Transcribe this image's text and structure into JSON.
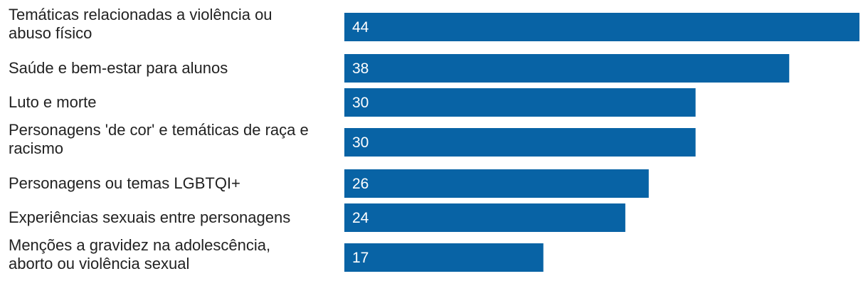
{
  "chart_data": {
    "type": "bar",
    "orientation": "horizontal",
    "categories": [
      [
        "Temáticas relacionadas a violência ou",
        "abuso físico"
      ],
      [
        "Saúde e bem-estar para alunos"
      ],
      [
        "Luto e morte"
      ],
      [
        "Personagens 'de cor' e temáticas de raça e",
        "racismo"
      ],
      [
        "Personagens ou temas LGBTQI+"
      ],
      [
        "Experiências sexuais entre personagens"
      ],
      [
        "Menções a gravidez na adolescência,",
        "aborto ou violência sexual"
      ]
    ],
    "values": [
      44,
      38,
      30,
      30,
      26,
      24,
      17
    ],
    "value_labels": [
      "44",
      "38",
      "30",
      "30",
      "26",
      "24",
      "17"
    ],
    "xlim": [
      0,
      44
    ],
    "bar_color": "#0863a5",
    "grid": false,
    "legend": "none"
  }
}
